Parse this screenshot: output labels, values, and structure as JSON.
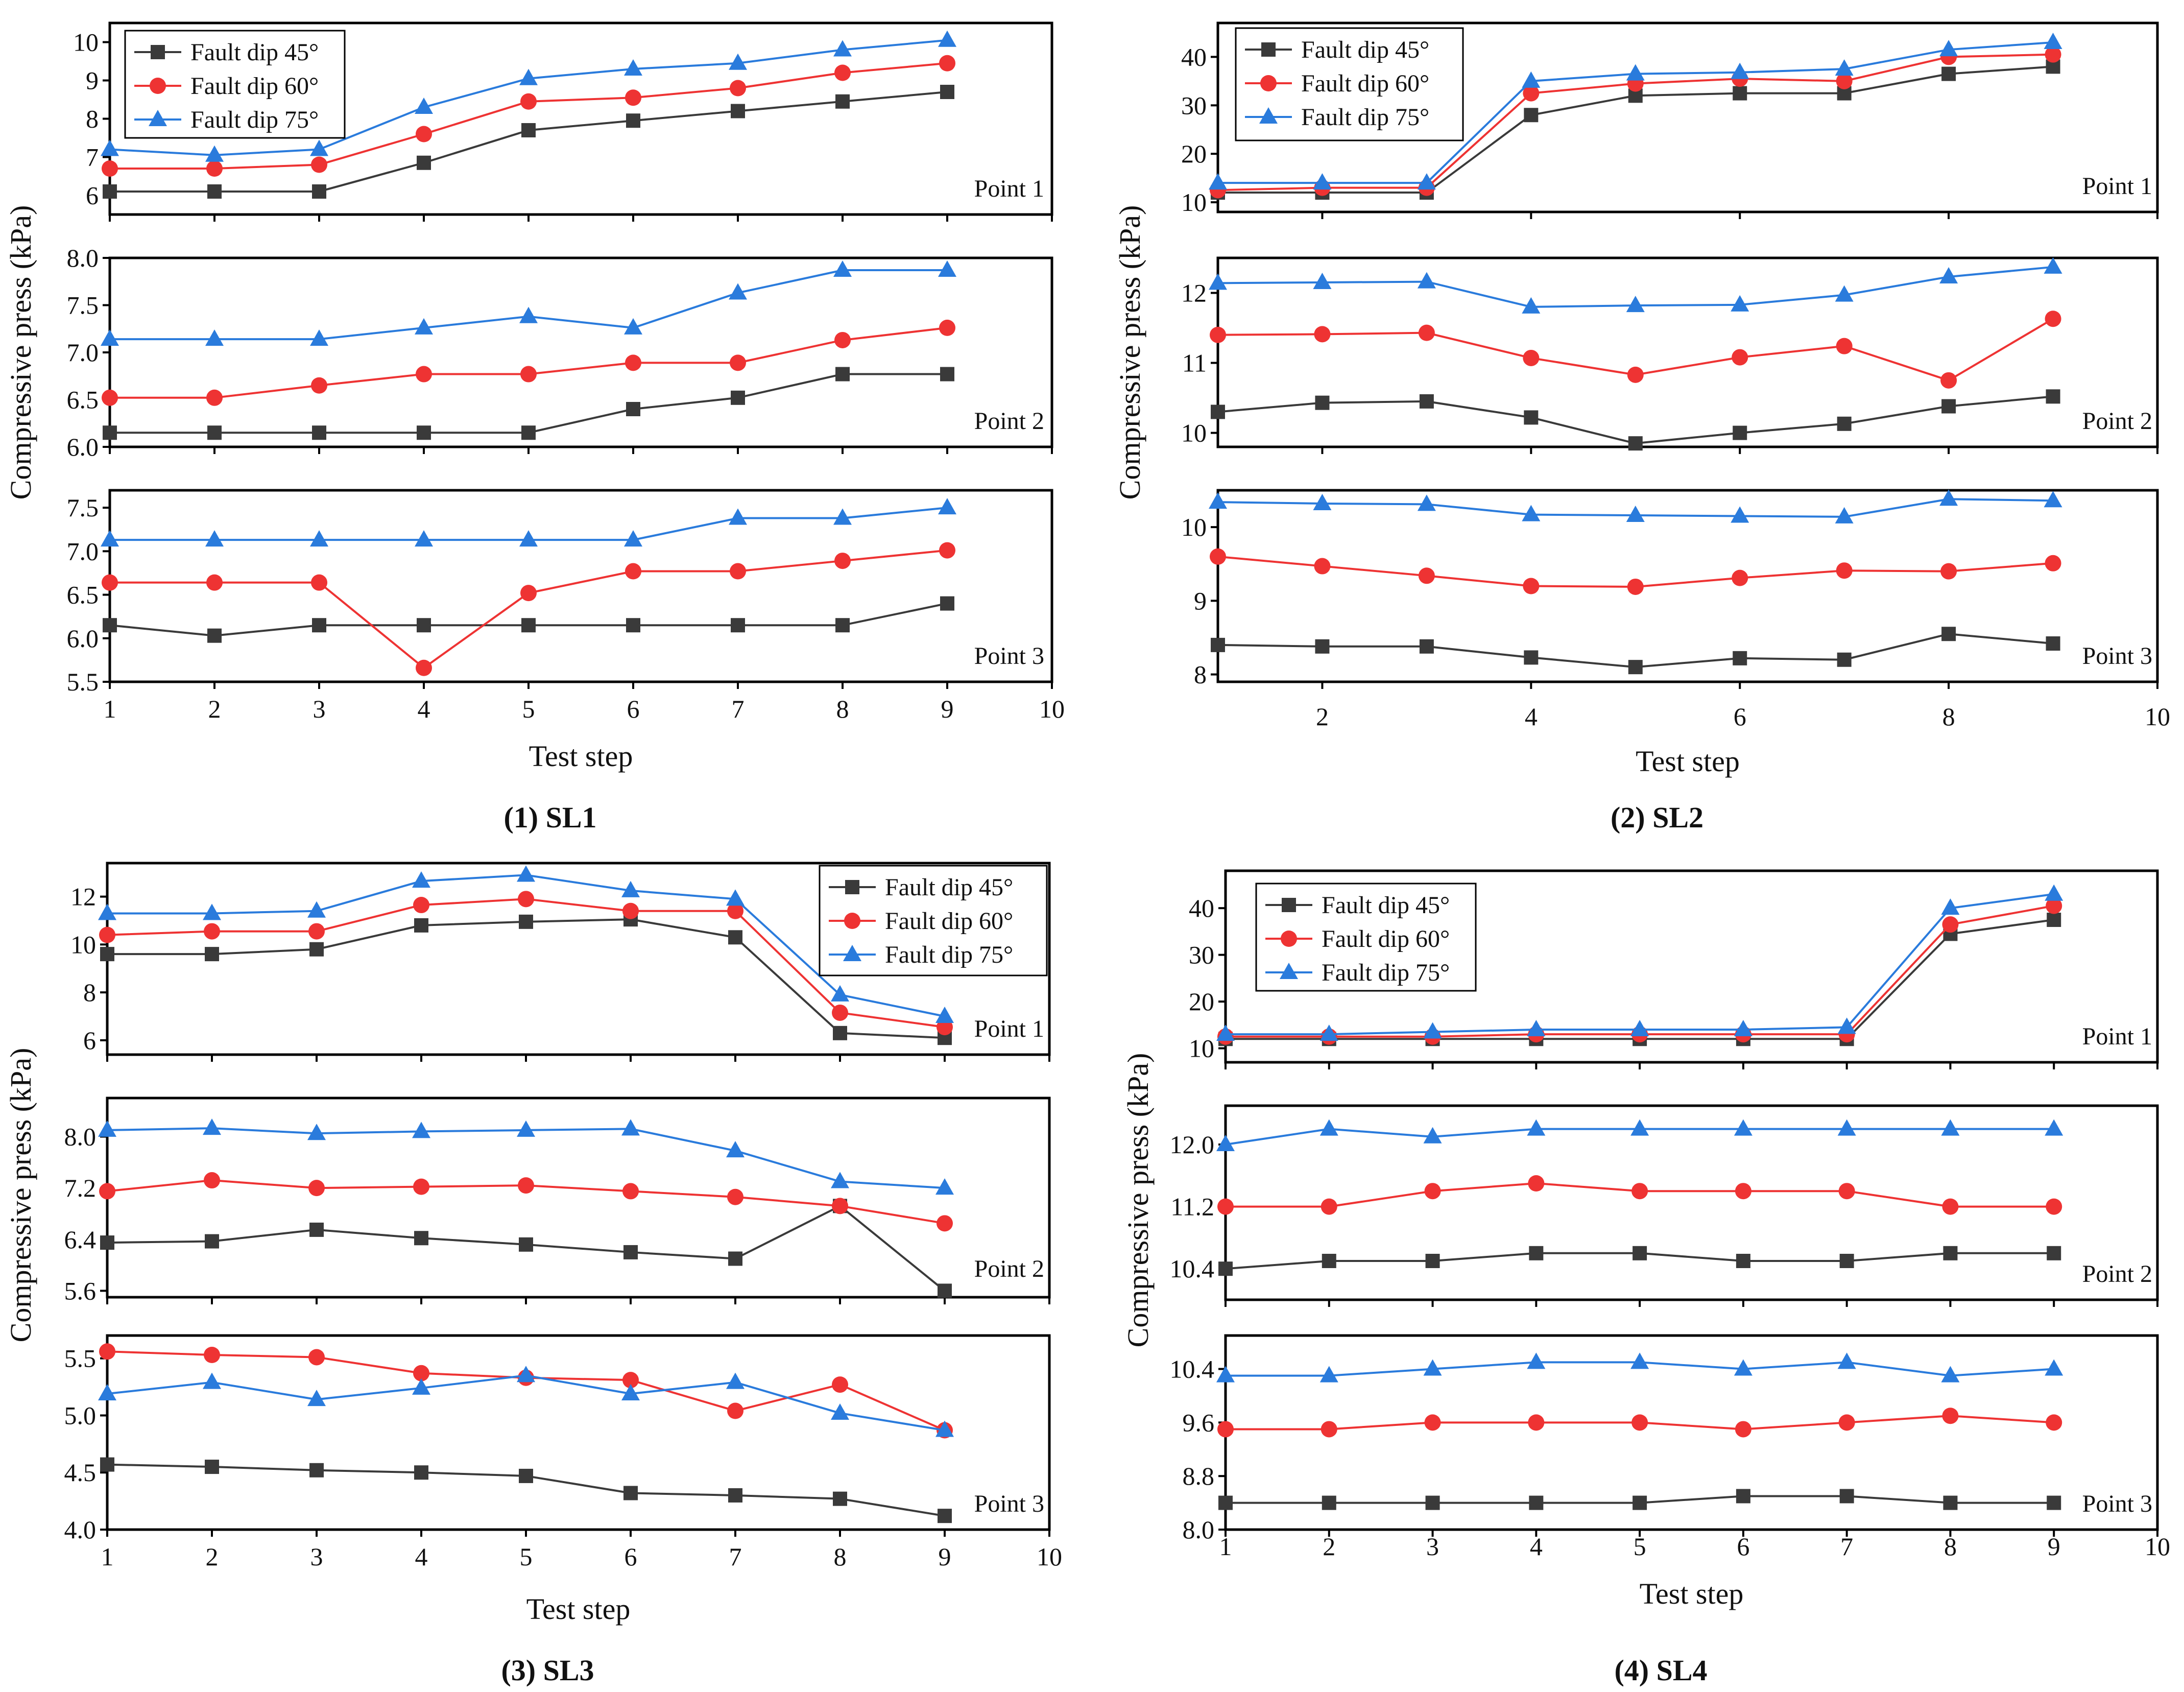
{
  "figure": {
    "shared_y_label": "Compressive press (kPa)",
    "shared_x_label": "Test step"
  },
  "legend_colors": {
    "fault_dip_45": "#3a3a3a",
    "fault_dip_60": "#ee3333",
    "fault_dip_75": "#2a7bdc"
  },
  "chart_data": [
    {
      "id": "SL1",
      "caption": "(1) SL1",
      "type": "line",
      "xlabel": "Test step",
      "ylabel": "Compressive press (kPa)",
      "x_ticks": [
        1,
        2,
        3,
        4,
        5,
        6,
        7,
        8,
        9,
        10
      ],
      "xlim": [
        1,
        10
      ],
      "legend_labels": [
        "Fault dip 45°",
        "Fault dip 60°",
        "Fault dip 75°"
      ],
      "subplots": [
        {
          "label": "Point 1",
          "ylim": [
            5.5,
            10.5
          ],
          "y_ticks": [
            6,
            7,
            8,
            9,
            10
          ],
          "series": [
            {
              "name": "Fault dip 45°",
              "values": [
                6.1,
                6.1,
                6.1,
                6.85,
                7.7,
                7.95,
                8.2,
                8.45,
                8.7
              ]
            },
            {
              "name": "Fault dip 60°",
              "values": [
                6.7,
                6.7,
                6.8,
                7.6,
                8.45,
                8.55,
                8.8,
                9.2,
                9.45
              ]
            },
            {
              "name": "Fault dip 75°",
              "values": [
                7.2,
                7.05,
                7.2,
                8.3,
                9.05,
                9.3,
                9.45,
                9.8,
                10.05
              ]
            }
          ]
        },
        {
          "label": "Point 2",
          "ylim": [
            6.0,
            8.0
          ],
          "y_ticks": [
            6.0,
            6.5,
            7.0,
            7.5,
            8.0
          ],
          "series": [
            {
              "name": "Fault dip 45°",
              "values": [
                6.15,
                6.15,
                6.15,
                6.15,
                6.15,
                6.4,
                6.52,
                6.77,
                6.77
              ]
            },
            {
              "name": "Fault dip 60°",
              "values": [
                6.52,
                6.52,
                6.65,
                6.77,
                6.77,
                6.89,
                6.89,
                7.13,
                7.26
              ]
            },
            {
              "name": "Fault dip 75°",
              "values": [
                7.14,
                7.14,
                7.14,
                7.26,
                7.38,
                7.26,
                7.63,
                7.87,
                7.87
              ]
            }
          ]
        },
        {
          "label": "Point 3",
          "ylim": [
            5.5,
            7.7
          ],
          "y_ticks": [
            5.5,
            6.0,
            6.5,
            7.0,
            7.5
          ],
          "series": [
            {
              "name": "Fault dip 45°",
              "values": [
                6.15,
                6.03,
                6.15,
                6.15,
                6.15,
                6.15,
                6.15,
                6.15,
                6.4
              ]
            },
            {
              "name": "Fault dip 60°",
              "values": [
                6.64,
                6.64,
                6.64,
                5.66,
                6.52,
                6.77,
                6.77,
                6.89,
                7.01
              ]
            },
            {
              "name": "Fault dip 75°",
              "values": [
                7.13,
                7.13,
                7.13,
                7.13,
                7.13,
                7.13,
                7.38,
                7.38,
                7.5
              ]
            }
          ]
        }
      ]
    },
    {
      "id": "SL2",
      "caption": "(2) SL2",
      "type": "line",
      "xlabel": "Test step",
      "ylabel": "Compressive press (kPa)",
      "x_ticks": [
        2,
        4,
        6,
        8,
        10
      ],
      "xlim": [
        1,
        10
      ],
      "legend_labels": [
        "Fault dip 45°",
        "Fault dip 60°",
        "Fault dip 75°"
      ],
      "subplots": [
        {
          "label": "Point 1",
          "ylim": [
            8,
            47
          ],
          "y_ticks": [
            10,
            20,
            30,
            40
          ],
          "series": [
            {
              "name": "Fault dip 45°",
              "values": [
                12,
                12,
                12,
                28,
                32,
                32.5,
                32.5,
                36.5,
                38
              ]
            },
            {
              "name": "Fault dip 60°",
              "values": [
                12.5,
                13,
                13,
                32.5,
                34.5,
                35.5,
                35,
                40,
                40.5
              ]
            },
            {
              "name": "Fault dip 75°",
              "values": [
                14,
                14,
                14,
                35,
                36.5,
                36.8,
                37.5,
                41.5,
                43
              ]
            }
          ]
        },
        {
          "label": "Point 2",
          "ylim": [
            9.8,
            12.5
          ],
          "y_ticks": [
            10,
            11,
            12
          ],
          "series": [
            {
              "name": "Fault dip 45°",
              "values": [
                10.3,
                10.43,
                10.45,
                10.22,
                9.85,
                10.0,
                10.13,
                10.38,
                10.52
              ]
            },
            {
              "name": "Fault dip 60°",
              "values": [
                11.4,
                11.41,
                11.43,
                11.07,
                10.83,
                11.08,
                11.24,
                10.75,
                11.63
              ]
            },
            {
              "name": "Fault dip 75°",
              "values": [
                12.14,
                12.15,
                12.16,
                11.8,
                11.82,
                11.83,
                11.97,
                12.23,
                12.37
              ]
            }
          ]
        },
        {
          "label": "Point 3",
          "ylim": [
            7.9,
            10.5
          ],
          "y_ticks": [
            8,
            9,
            10
          ],
          "series": [
            {
              "name": "Fault dip 45°",
              "values": [
                8.4,
                8.38,
                8.38,
                8.23,
                8.1,
                8.22,
                8.2,
                8.55,
                8.42
              ]
            },
            {
              "name": "Fault dip 60°",
              "values": [
                9.6,
                9.47,
                9.34,
                9.2,
                9.19,
                9.31,
                9.41,
                9.4,
                9.51
              ]
            },
            {
              "name": "Fault dip 75°",
              "values": [
                10.34,
                10.32,
                10.31,
                10.17,
                10.16,
                10.15,
                10.14,
                10.38,
                10.36
              ]
            }
          ]
        }
      ]
    },
    {
      "id": "SL3",
      "caption": "(3) SL3",
      "type": "line",
      "xlabel": "Test step",
      "ylabel": "Compressive press (kPa)",
      "x_ticks": [
        1,
        2,
        3,
        4,
        5,
        6,
        7,
        8,
        9,
        10
      ],
      "xlim": [
        1,
        10
      ],
      "legend_labels": [
        "Fault dip 45°",
        "Fault dip 60°",
        "Fault dip 75°"
      ],
      "subplots": [
        {
          "label": "Point 1",
          "ylim": [
            5.4,
            13.4
          ],
          "y_ticks": [
            6,
            8,
            10,
            12
          ],
          "series": [
            {
              "name": "Fault dip 45°",
              "values": [
                9.6,
                9.6,
                9.8,
                10.8,
                10.95,
                11.05,
                10.3,
                6.3,
                6.1
              ]
            },
            {
              "name": "Fault dip 60°",
              "values": [
                10.4,
                10.55,
                10.55,
                11.65,
                11.9,
                11.4,
                11.4,
                7.15,
                6.55
              ]
            },
            {
              "name": "Fault dip 75°",
              "values": [
                11.3,
                11.3,
                11.4,
                12.65,
                12.9,
                12.25,
                11.9,
                7.9,
                7.0
              ]
            }
          ]
        },
        {
          "label": "Point 2",
          "ylim": [
            5.5,
            8.6
          ],
          "y_ticks": [
            5.6,
            6.4,
            7.2,
            8.0
          ],
          "series": [
            {
              "name": "Fault dip 45°",
              "values": [
                6.35,
                6.37,
                6.55,
                6.42,
                6.32,
                6.2,
                6.1,
                6.92,
                5.6
              ]
            },
            {
              "name": "Fault dip 60°",
              "values": [
                7.15,
                7.32,
                7.2,
                7.22,
                7.24,
                7.15,
                7.06,
                6.92,
                6.65
              ]
            },
            {
              "name": "Fault dip 75°",
              "values": [
                8.1,
                8.13,
                8.05,
                8.08,
                8.1,
                8.12,
                7.78,
                7.3,
                7.2
              ]
            }
          ]
        },
        {
          "label": "Point 3",
          "ylim": [
            4.0,
            5.7
          ],
          "y_ticks": [
            4.0,
            4.5,
            5.0,
            5.5
          ],
          "series": [
            {
              "name": "Fault dip 45°",
              "values": [
                4.57,
                4.55,
                4.52,
                4.5,
                4.47,
                4.32,
                4.3,
                4.27,
                4.12
              ]
            },
            {
              "name": "Fault dip 60°",
              "values": [
                5.56,
                5.53,
                5.51,
                5.37,
                5.33,
                5.31,
                5.04,
                5.27,
                4.87
              ]
            },
            {
              "name": "Fault dip 75°",
              "values": [
                5.19,
                5.29,
                5.14,
                5.24,
                5.35,
                5.19,
                5.29,
                5.02,
                4.87
              ]
            }
          ]
        }
      ]
    },
    {
      "id": "SL4",
      "caption": "(4) SL4",
      "type": "line",
      "xlabel": "Test step",
      "ylabel": "Compressive press (kPa)",
      "x_ticks": [
        1,
        2,
        3,
        4,
        5,
        6,
        7,
        8,
        9,
        10
      ],
      "xlim": [
        1,
        10
      ],
      "legend_labels": [
        "Fault dip 45°",
        "Fault dip 60°",
        "Fault dip 75°"
      ],
      "subplots": [
        {
          "label": "Point 1",
          "ylim": [
            7,
            48
          ],
          "y_ticks": [
            10,
            20,
            30,
            40
          ],
          "series": [
            {
              "name": "Fault dip 45°",
              "values": [
                12,
                12,
                12,
                12,
                12,
                12,
                12,
                34.5,
                37.5
              ]
            },
            {
              "name": "Fault dip 60°",
              "values": [
                12.5,
                12.5,
                12.5,
                13,
                13,
                13,
                13,
                36.5,
                40.5
              ]
            },
            {
              "name": "Fault dip 75°",
              "values": [
                13,
                13,
                13.5,
                14,
                14,
                14,
                14.5,
                40,
                43
              ]
            }
          ]
        },
        {
          "label": "Point 2",
          "ylim": [
            10.0,
            12.5
          ],
          "y_ticks": [
            10.4,
            11.2,
            12.0
          ],
          "series": [
            {
              "name": "Fault dip 45°",
              "values": [
                10.4,
                10.5,
                10.5,
                10.6,
                10.6,
                10.5,
                10.5,
                10.6,
                10.6
              ]
            },
            {
              "name": "Fault dip 60°",
              "values": [
                11.2,
                11.2,
                11.4,
                11.5,
                11.4,
                11.4,
                11.4,
                11.2,
                11.2
              ]
            },
            {
              "name": "Fault dip 75°",
              "values": [
                12.0,
                12.2,
                12.1,
                12.2,
                12.2,
                12.2,
                12.2,
                12.2,
                12.2
              ]
            }
          ]
        },
        {
          "label": "Point 3",
          "ylim": [
            8.0,
            10.9
          ],
          "y_ticks": [
            8.0,
            8.8,
            9.6,
            10.4
          ],
          "series": [
            {
              "name": "Fault dip 45°",
              "values": [
                8.4,
                8.4,
                8.4,
                8.4,
                8.4,
                8.5,
                8.5,
                8.4,
                8.4
              ]
            },
            {
              "name": "Fault dip 60°",
              "values": [
                9.5,
                9.5,
                9.6,
                9.6,
                9.6,
                9.5,
                9.6,
                9.7,
                9.6
              ]
            },
            {
              "name": "Fault dip 75°",
              "values": [
                10.3,
                10.3,
                10.4,
                10.5,
                10.5,
                10.4,
                10.5,
                10.3,
                10.4
              ]
            }
          ]
        }
      ]
    }
  ]
}
